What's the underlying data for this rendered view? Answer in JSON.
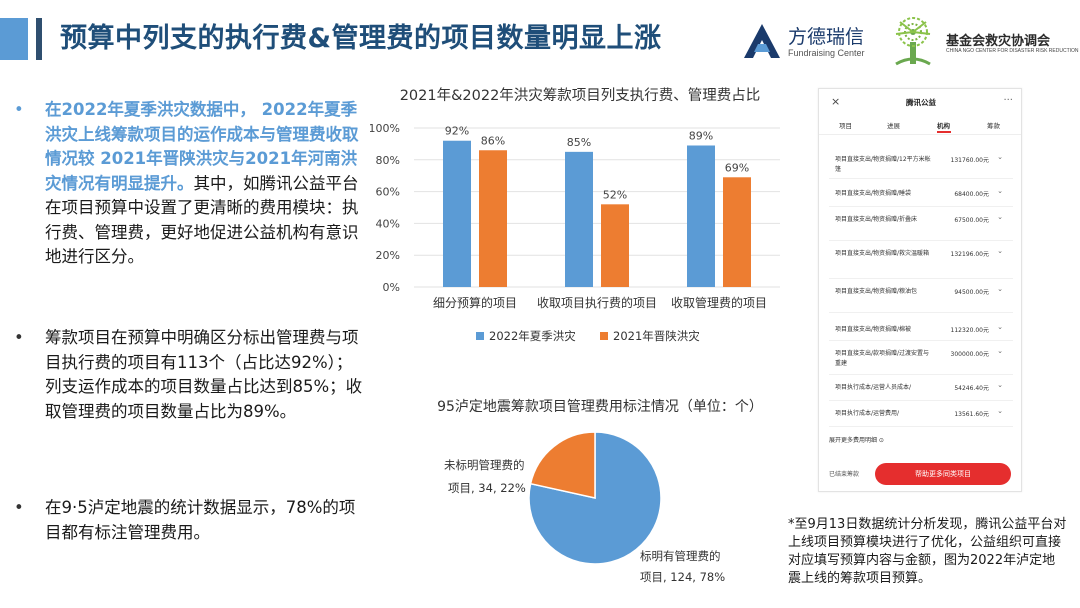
{
  "title": "预算中列支的执行费&管理费的项目数量明显上涨",
  "logos": {
    "fundraising_center": {
      "name": "方德瑞信",
      "sub": "Fundraising Center"
    },
    "ngo_center": {
      "name": "基金会救灾协调会",
      "sub": "CHINA NGO CENTER FOR DISASTER RISK REDUCTION"
    }
  },
  "bullets": [
    {
      "dot": "•",
      "highlight": "在2022年夏季洪灾数据中， 2022年夏季洪灾上线筹款项目的运作成本与管理费收取情况较 2021年晋陕洪灾与2021年河南洪灾情况有明显提升。",
      "text": "其中，如腾讯公益平台在项目预算中设置了更清晰的费用模块：执行费、管理费，更好地促进公益机构有意识地进行区分。"
    },
    {
      "dot": "•",
      "highlight": "",
      "text": "筹款项目在预算中明确区分标出管理费与项目执行费的项目有113个（占比达92%）；列支运作成本的项目数量占比达到85%；收取管理费的项目数量占比为89%。"
    },
    {
      "dot": "•",
      "highlight": "",
      "text": "在9·5泸定地震的统计数据显示，78%的项目都有标注管理费用。"
    }
  ],
  "chart_data": [
    {
      "type": "bar",
      "title": "2021年&2022年洪灾筹款项目列支执行费、管理费占比",
      "categories": [
        "细分预算的项目",
        "收取项目执行费的项目",
        "收取管理费的项目"
      ],
      "series": [
        {
          "name": "2022年夏季洪灾",
          "values": [
            92,
            85,
            89
          ],
          "color": "#5b9bd5"
        },
        {
          "name": "2021年晋陕洪灾",
          "values": [
            86,
            52,
            69
          ],
          "color": "#ed7d31"
        }
      ],
      "data_labels": [
        [
          "92%",
          "85%",
          "89%"
        ],
        [
          "86%",
          "52%",
          "69%"
        ]
      ],
      "y_ticks": [
        "0%",
        "20%",
        "40%",
        "60%",
        "80%",
        "100%"
      ],
      "ylim": [
        0,
        100
      ],
      "legend_position": "bottom"
    },
    {
      "type": "pie",
      "title": "95泸定地震筹款项目管理费用标注情况（单位：个）",
      "slices": [
        {
          "label": "标明有管理费的项目",
          "value": 124,
          "percent": 78,
          "color": "#5b9bd5",
          "label_text_1": "标明有管理费的",
          "label_text_2": "项目, 124, 78%"
        },
        {
          "label": "未标明管理费的项目",
          "value": 34,
          "percent": 22,
          "color": "#ed7d31",
          "label_text_1": "未标明管理费的",
          "label_text_2": "项目, 34, 22%"
        }
      ]
    }
  ],
  "phone": {
    "close_icon": "×",
    "title": "腾讯公益",
    "more_icon": "···",
    "tabs": [
      "项目",
      "进展",
      "机构",
      "筹款"
    ],
    "active_tab": 2,
    "rows": [
      {
        "label": "项目直接支出/物资捐赠/12平方米帐篷",
        "amount": "131760.00元"
      },
      {
        "label": "项目直接支出/物资捐赠/睡袋",
        "amount": "68400.00元"
      },
      {
        "label": "项目直接支出/物资捐赠/折叠床",
        "amount": "67500.00元"
      },
      {
        "label": "项目直接支出/物资捐赠/救灾温暖箱",
        "amount": "132196.00元"
      },
      {
        "label": "项目直接支出/物资捐赠/粮油包",
        "amount": "94500.00元"
      },
      {
        "label": "项目直接支出/物资捐赠/棉被",
        "amount": "112320.00元"
      },
      {
        "label": "项目直接支出/款项捐赠/过渡安置与重建",
        "amount": "300000.00元"
      },
      {
        "label": "项目执行成本/运营人员成本/",
        "amount": "54246.40元"
      },
      {
        "label": "项目执行成本/运营费用/",
        "amount": "13561.60元"
      }
    ],
    "chevron": "⌄",
    "expand_text": "展开更多费用明细 ⊙",
    "ended_text": "已结束筹款",
    "button_label": "帮助更多同类项目"
  },
  "note": "*至9月13日数据统计分析发现，腾讯公益平台对上线项目预算模块进行了优化，公益组织可直接对应填写预算内容与金额，图为2022年泸定地震上线的筹款项目预算。"
}
